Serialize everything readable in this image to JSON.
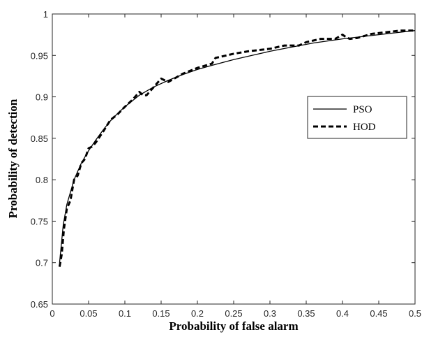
{
  "chart_data": {
    "type": "line",
    "title": "",
    "xlabel": "Probability of false alarm",
    "ylabel": "Probability of detection",
    "xlim": [
      0,
      0.5
    ],
    "ylim": [
      0.65,
      1
    ],
    "xticks": [
      "0",
      "0.05",
      "0.1",
      "0.15",
      "0.2",
      "0.25",
      "0.3",
      "0.35",
      "0.4",
      "0.45",
      "0.5"
    ],
    "yticks": [
      "0.65",
      "0.7",
      "0.75",
      "0.8",
      "0.85",
      "0.9",
      "0.95",
      "1"
    ],
    "grid": false,
    "legend_position": "right",
    "series": [
      {
        "name": "PSO",
        "style": "solid",
        "x": [
          0.01,
          0.015,
          0.02,
          0.03,
          0.04,
          0.05,
          0.06,
          0.07,
          0.08,
          0.09,
          0.1,
          0.12,
          0.14,
          0.16,
          0.18,
          0.2,
          0.22,
          0.25,
          0.28,
          0.3,
          0.33,
          0.36,
          0.4,
          0.45,
          0.5
        ],
        "y": [
          0.7,
          0.745,
          0.77,
          0.8,
          0.82,
          0.835,
          0.848,
          0.86,
          0.871,
          0.88,
          0.888,
          0.902,
          0.912,
          0.92,
          0.927,
          0.933,
          0.938,
          0.945,
          0.951,
          0.955,
          0.96,
          0.965,
          0.97,
          0.975,
          0.98
        ]
      },
      {
        "name": "HOD",
        "style": "dashed",
        "x": [
          0.01,
          0.013,
          0.016,
          0.02,
          0.025,
          0.03,
          0.035,
          0.04,
          0.045,
          0.05,
          0.055,
          0.06,
          0.07,
          0.08,
          0.09,
          0.1,
          0.11,
          0.12,
          0.125,
          0.13,
          0.14,
          0.15,
          0.155,
          0.16,
          0.18,
          0.2,
          0.22,
          0.225,
          0.23,
          0.25,
          0.27,
          0.29,
          0.3,
          0.32,
          0.34,
          0.35,
          0.37,
          0.39,
          0.4,
          0.405,
          0.41,
          0.42,
          0.44,
          0.46,
          0.48,
          0.5
        ],
        "y": [
          0.695,
          0.71,
          0.74,
          0.765,
          0.775,
          0.8,
          0.805,
          0.82,
          0.825,
          0.838,
          0.84,
          0.845,
          0.858,
          0.872,
          0.879,
          0.888,
          0.896,
          0.906,
          0.902,
          0.902,
          0.912,
          0.922,
          0.92,
          0.918,
          0.928,
          0.935,
          0.94,
          0.947,
          0.948,
          0.952,
          0.955,
          0.957,
          0.958,
          0.962,
          0.962,
          0.966,
          0.97,
          0.97,
          0.975,
          0.972,
          0.97,
          0.971,
          0.976,
          0.978,
          0.98,
          0.98
        ]
      }
    ]
  }
}
